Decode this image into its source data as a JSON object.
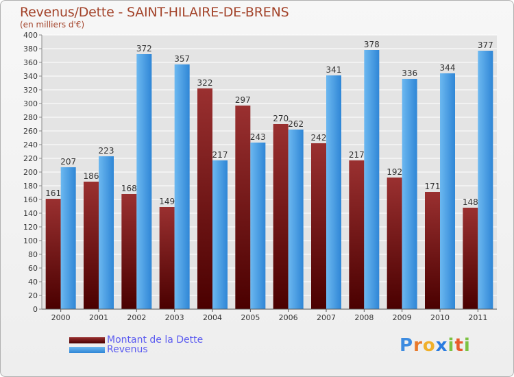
{
  "header": {
    "title": "Revenus/Dette - SAINT-HILAIRE-DE-BRENS",
    "subtitle": "(en milliers d'€)"
  },
  "legend": {
    "debt_label": "Montant de la Dette",
    "revenue_label": "Revenus"
  },
  "logo": {
    "letters": [
      "P",
      "r",
      "o",
      "x",
      "i",
      "t",
      "i"
    ],
    "colors": [
      "#3d8be0",
      "#e8782a",
      "#f0b02a",
      "#2a7be0",
      "#7cc242",
      "#e85a2a",
      "#7cc242"
    ]
  },
  "colors": {
    "debt": "#7a1a1a",
    "revenue": "#4aa3e8",
    "grid": "#ffffff",
    "text": "#333333"
  },
  "chart_data": {
    "type": "bar",
    "categories": [
      "2000",
      "2001",
      "2002",
      "2003",
      "2004",
      "2005",
      "2006",
      "2007",
      "2008",
      "2009",
      "2010",
      "2011"
    ],
    "series": [
      {
        "name": "Montant de la Dette",
        "values": [
          161,
          186,
          168,
          149,
          322,
          297,
          270,
          242,
          217,
          192,
          171,
          148
        ]
      },
      {
        "name": "Revenus",
        "values": [
          207,
          223,
          372,
          357,
          217,
          243,
          262,
          341,
          378,
          336,
          344,
          377
        ]
      }
    ],
    "title": "Revenus/Dette - SAINT-HILAIRE-DE-BRENS",
    "ylabel": "(en milliers d'€)",
    "ylim": [
      0,
      400
    ],
    "ytick_step": 20,
    "grid": true,
    "legend_position": "bottom-left"
  }
}
